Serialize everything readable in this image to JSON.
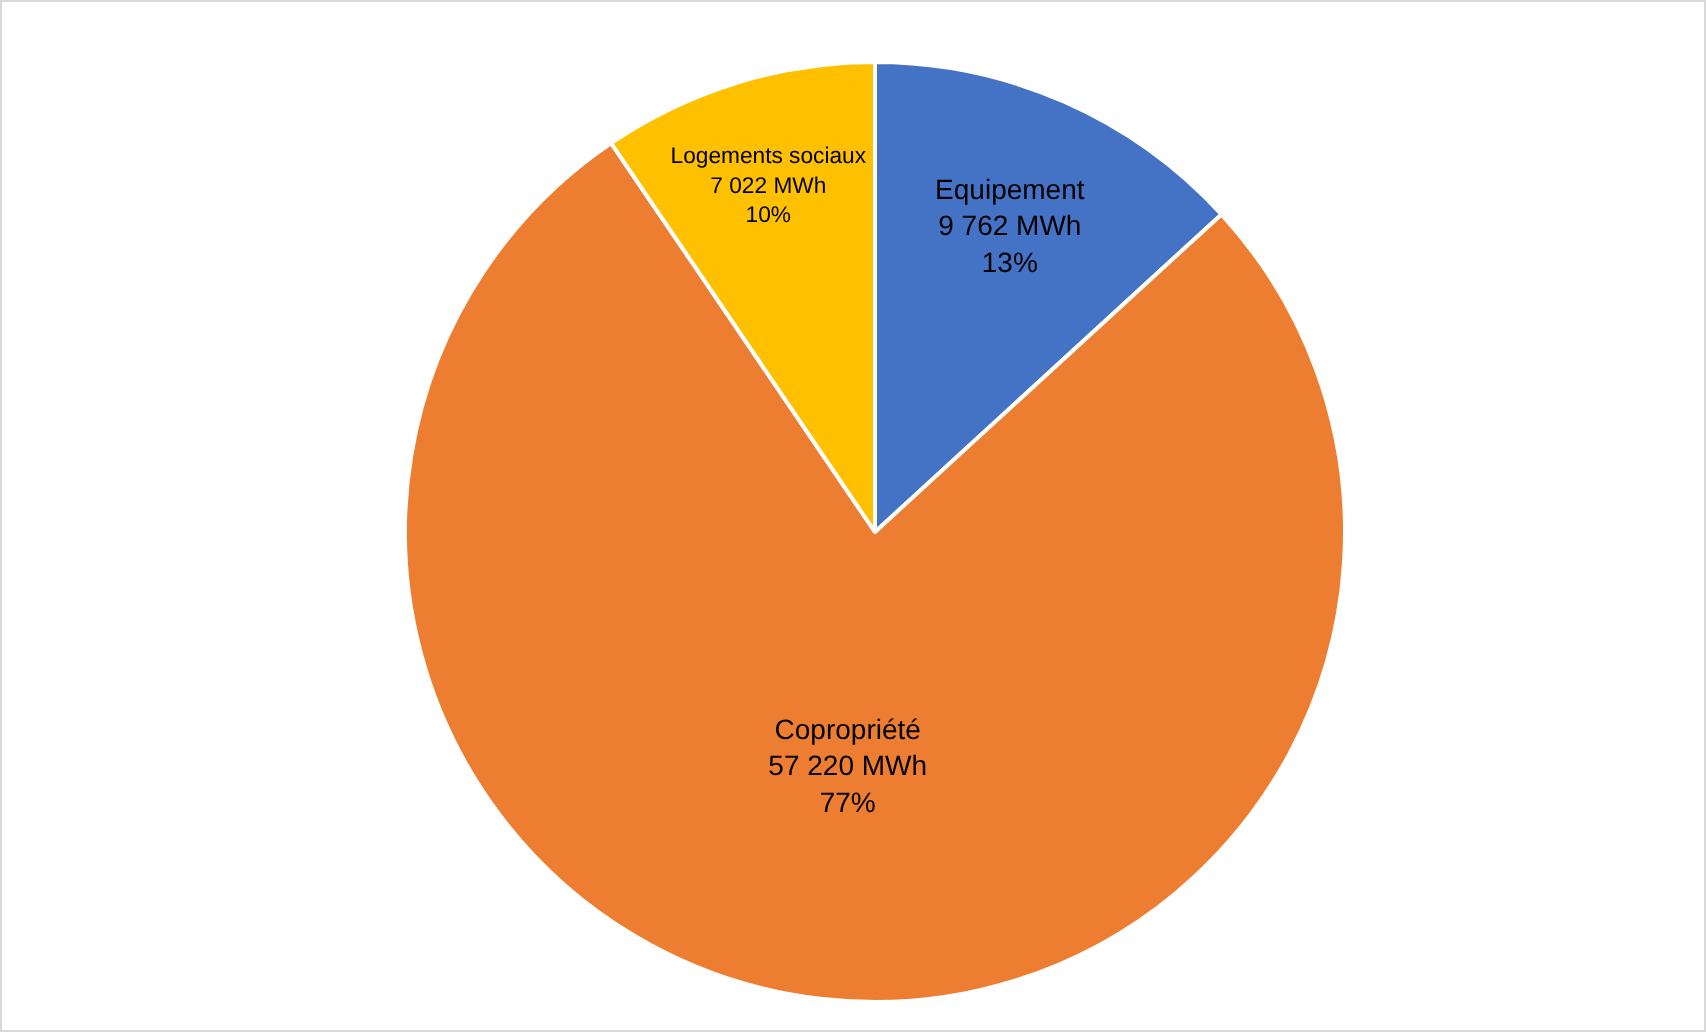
{
  "chart_data": {
    "type": "pie",
    "categories": [
      "Equipement",
      "Copropriété",
      "Logements sociaux"
    ],
    "values": [
      9762,
      57220,
      7022
    ],
    "value_labels": [
      "9 762 MWh\n13%",
      "57 220 MWh\n77%",
      "7 022 MWh\n10%"
    ],
    "colors": [
      "#4472c4",
      "#ed7d31",
      "#ffc000"
    ],
    "legend": false
  }
}
